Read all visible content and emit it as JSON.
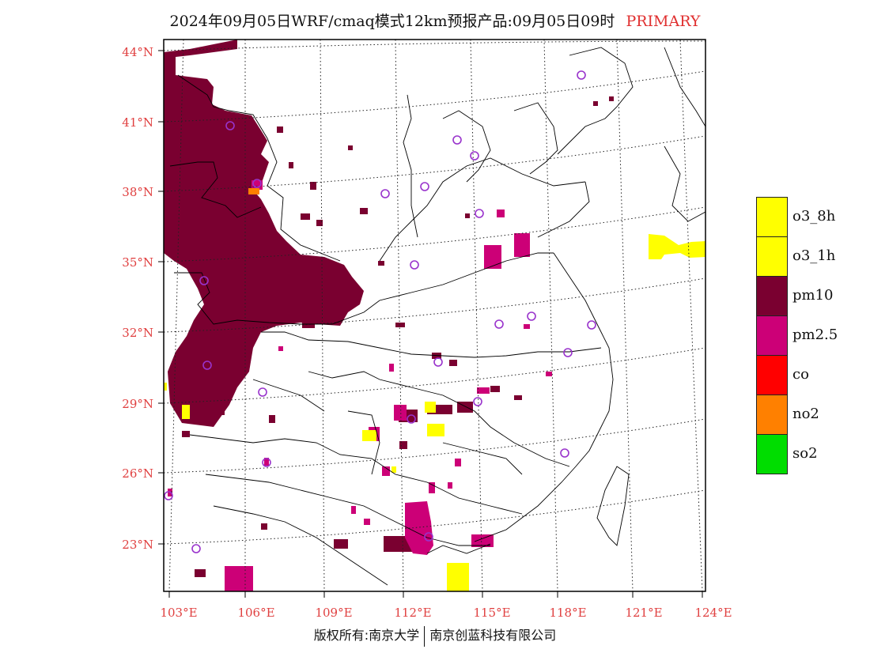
{
  "title": "2024年09月05日WRF/cmaq模式12km预报产品:09月05日09时",
  "title_tag": "PRIMARY",
  "lat_labels": [
    "44°N",
    "41°N",
    "38°N",
    "35°N",
    "32°N",
    "29°N",
    "26°N",
    "23°N"
  ],
  "lon_labels": [
    "103°E",
    "106°E",
    "109°E",
    "112°E",
    "115°E",
    "118°E",
    "121°E",
    "124°E"
  ],
  "legend": [
    {
      "label": "o3_8h",
      "color": "#ffff00"
    },
    {
      "label": "o3_1h",
      "color": "#ffff00"
    },
    {
      "label": "pm10",
      "color": "#7a0030"
    },
    {
      "label": "pm2.5",
      "color": "#cc0077"
    },
    {
      "label": "co",
      "color": "#ff0000"
    },
    {
      "label": "no2",
      "color": "#ff8000"
    },
    {
      "label": "so2",
      "color": "#00dd00"
    }
  ],
  "footer_left": "版权所有:南京大学",
  "footer_right": "南京创蓝科技有限公司",
  "map_colors": {
    "pm10": "#7a0030",
    "pm25": "#cc0077",
    "o3": "#ffff00",
    "no2": "#ff8000",
    "city": "#9933cc"
  }
}
